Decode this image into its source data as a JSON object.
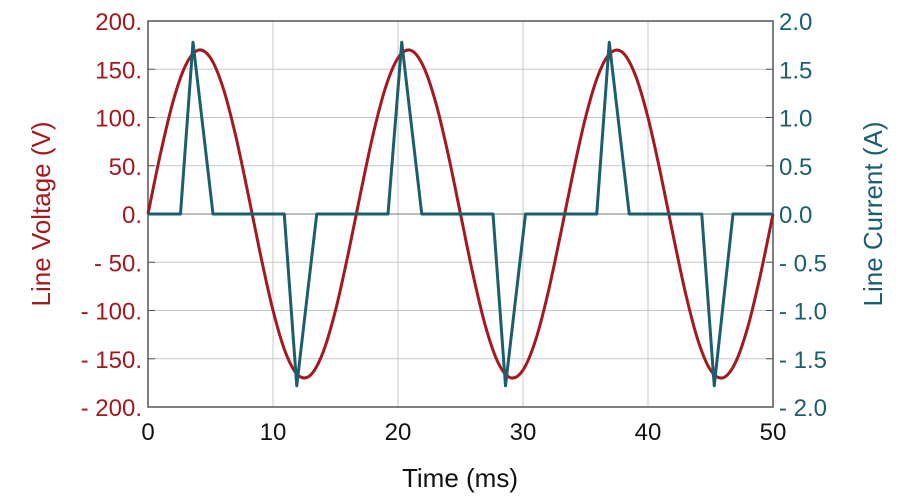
{
  "chart_data": {
    "type": "line",
    "title": "",
    "xlabel": "Time (ms)",
    "ylabel_left": "Line Voltage (V)",
    "ylabel_right": "Line Current (A)",
    "xlim": [
      0,
      50
    ],
    "ylim_left": [
      -200,
      200
    ],
    "ylim_right": [
      -2.0,
      2.0
    ],
    "grid": true,
    "x_ticks": [
      "0",
      "10",
      "20",
      "30",
      "40",
      "50"
    ],
    "y_ticks_left": [
      "200.",
      "150.",
      "100.",
      "50.",
      "0.",
      "- 50.",
      "- 100.",
      "- 150.",
      "- 200."
    ],
    "y_ticks_right": [
      "2.0",
      "1.5",
      "1.0",
      "0.5",
      "0.0",
      "- 0.5",
      "- 1.0",
      "- 1.5",
      "- 2.0"
    ],
    "colors": {
      "voltage": "#a3191f",
      "current": "#1b5e6e",
      "grid": "#c8c8c8"
    },
    "series": [
      {
        "axis": "left",
        "x": [
          0,
          1,
          2,
          3,
          4,
          5,
          6,
          7,
          8,
          9,
          10,
          11,
          12,
          13,
          14,
          15,
          16,
          17,
          18,
          19,
          20,
          21,
          22,
          23,
          24,
          25,
          26,
          27,
          28,
          29,
          30,
          31,
          32,
          33,
          34,
          35,
          36,
          37,
          38,
          39,
          40,
          41,
          42,
          43,
          44,
          45,
          46,
          47,
          48,
          49,
          50
        ],
        "y": [
          0,
          62.6,
          116.4,
          153.8,
          169.7,
          161.7,
          131.0,
          81.9,
          21.3,
          -42.3,
          -99.9,
          -143.5,
          -167.0,
          -167.0,
          -143.5,
          -99.9,
          -42.3,
          21.3,
          81.9,
          131.0,
          161.7,
          169.7,
          153.8,
          116.4,
          62.6,
          0,
          -62.6,
          -116.4,
          -153.8,
          -169.7,
          -161.7,
          -131.0,
          -81.9,
          -21.3,
          42.3,
          99.9,
          143.5,
          167.0,
          167.0,
          143.5,
          99.9,
          42.3,
          -21.3,
          -81.9,
          -131.0,
          -161.7,
          -169.7,
          -153.8,
          -116.4,
          -62.6,
          0
        ]
      },
      {
        "axis": "right",
        "x": [
          0,
          2.6,
          3.6,
          5.2,
          10.9,
          11.9,
          13.5,
          19.2,
          20.3,
          21.9,
          27.6,
          28.6,
          30.2,
          35.9,
          36.9,
          38.5,
          44.3,
          45.3,
          46.8,
          50
        ],
        "y": [
          0,
          0,
          1.78,
          0,
          0,
          -1.78,
          0,
          0,
          1.78,
          0,
          0,
          -1.78,
          0,
          0,
          1.78,
          0,
          0,
          -1.78,
          0,
          0
        ]
      }
    ]
  }
}
